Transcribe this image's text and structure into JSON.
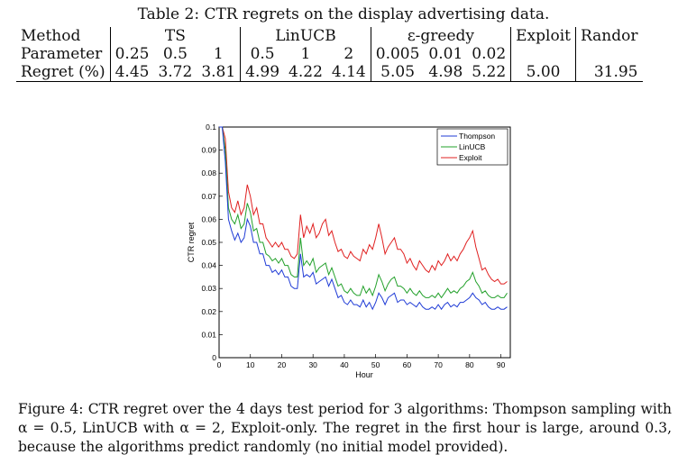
{
  "table": {
    "caption": "Table 2: CTR regrets on the display advertising data.",
    "row_method_label": "Method",
    "row_parameter_label": "Parameter",
    "row_regret_label": "Regret (%)",
    "groups": [
      {
        "name": "TS",
        "params": [
          "0.25",
          "0.5",
          "1"
        ],
        "regrets": [
          "4.45",
          "3.72",
          "3.81"
        ]
      },
      {
        "name": "LinUCB",
        "params": [
          "0.5",
          "1",
          "2"
        ],
        "regrets": [
          "4.99",
          "4.22",
          "4.14"
        ]
      },
      {
        "name": "ε-greedy",
        "params": [
          "0.005",
          "0.01",
          "0.02"
        ],
        "regrets": [
          "5.05",
          "4.98",
          "5.22"
        ]
      },
      {
        "name": "Exploit",
        "params": [
          ""
        ],
        "regrets": [
          "5.00"
        ]
      },
      {
        "name": "Randor",
        "params": [
          ""
        ],
        "regrets": [
          "31.95"
        ]
      }
    ]
  },
  "chart_data": {
    "type": "line",
    "xlabel": "Hour",
    "ylabel": "CTR regret",
    "xlim": [
      0,
      93
    ],
    "ylim": [
      0,
      0.1
    ],
    "xticks": [
      "0",
      "10",
      "20",
      "30",
      "40",
      "50",
      "60",
      "70",
      "80",
      "90"
    ],
    "yticks": [
      "0",
      "0.01",
      "0.02",
      "0.03",
      "0.04",
      "0.05",
      "0.06",
      "0.07",
      "0.08",
      "0.09",
      "0.1"
    ],
    "legend_position": "top-right",
    "x": [
      0,
      1,
      2,
      3,
      4,
      5,
      6,
      7,
      8,
      9,
      10,
      11,
      12,
      13,
      14,
      15,
      16,
      17,
      18,
      19,
      20,
      21,
      22,
      23,
      24,
      25,
      26,
      27,
      28,
      29,
      30,
      31,
      32,
      33,
      34,
      35,
      36,
      37,
      38,
      39,
      40,
      41,
      42,
      43,
      44,
      45,
      46,
      47,
      48,
      49,
      50,
      51,
      52,
      53,
      54,
      55,
      56,
      57,
      58,
      59,
      60,
      61,
      62,
      63,
      64,
      65,
      66,
      67,
      68,
      69,
      70,
      71,
      72,
      73,
      74,
      75,
      76,
      77,
      78,
      79,
      80,
      81,
      82,
      83,
      84,
      85,
      86,
      87,
      88,
      89,
      90,
      91,
      92
    ],
    "series": [
      {
        "name": "Thompson",
        "color": "#1f3bd6",
        "values": [
          0.1,
          0.1,
          0.085,
          0.06,
          0.055,
          0.051,
          0.054,
          0.05,
          0.052,
          0.06,
          0.057,
          0.05,
          0.05,
          0.045,
          0.045,
          0.04,
          0.04,
          0.037,
          0.038,
          0.036,
          0.038,
          0.035,
          0.035,
          0.031,
          0.03,
          0.03,
          0.045,
          0.035,
          0.036,
          0.035,
          0.037,
          0.032,
          0.033,
          0.034,
          0.035,
          0.031,
          0.034,
          0.03,
          0.026,
          0.027,
          0.024,
          0.023,
          0.025,
          0.023,
          0.023,
          0.022,
          0.025,
          0.022,
          0.024,
          0.021,
          0.024,
          0.028,
          0.026,
          0.023,
          0.026,
          0.027,
          0.028,
          0.024,
          0.025,
          0.025,
          0.023,
          0.024,
          0.023,
          0.022,
          0.024,
          0.022,
          0.021,
          0.021,
          0.022,
          0.021,
          0.023,
          0.021,
          0.023,
          0.024,
          0.022,
          0.023,
          0.022,
          0.024,
          0.024,
          0.025,
          0.026,
          0.028,
          0.026,
          0.025,
          0.023,
          0.024,
          0.022,
          0.021,
          0.021,
          0.022,
          0.021,
          0.021,
          0.022
        ]
      },
      {
        "name": "LinUCB",
        "color": "#22a02a",
        "values": [
          0.1,
          0.1,
          0.09,
          0.065,
          0.06,
          0.058,
          0.062,
          0.056,
          0.058,
          0.067,
          0.063,
          0.055,
          0.056,
          0.05,
          0.05,
          0.045,
          0.044,
          0.042,
          0.043,
          0.041,
          0.043,
          0.04,
          0.04,
          0.036,
          0.035,
          0.035,
          0.052,
          0.04,
          0.042,
          0.04,
          0.043,
          0.037,
          0.039,
          0.04,
          0.041,
          0.036,
          0.039,
          0.035,
          0.031,
          0.032,
          0.029,
          0.028,
          0.03,
          0.028,
          0.027,
          0.027,
          0.031,
          0.028,
          0.03,
          0.027,
          0.031,
          0.036,
          0.033,
          0.029,
          0.032,
          0.034,
          0.035,
          0.031,
          0.031,
          0.03,
          0.028,
          0.03,
          0.028,
          0.027,
          0.029,
          0.027,
          0.026,
          0.026,
          0.027,
          0.026,
          0.028,
          0.026,
          0.028,
          0.03,
          0.028,
          0.029,
          0.028,
          0.03,
          0.031,
          0.033,
          0.034,
          0.037,
          0.033,
          0.031,
          0.028,
          0.029,
          0.027,
          0.026,
          0.026,
          0.027,
          0.026,
          0.026,
          0.028
        ]
      },
      {
        "name": "Exploit",
        "color": "#e02020",
        "values": [
          0.1,
          0.1,
          0.095,
          0.072,
          0.065,
          0.063,
          0.068,
          0.062,
          0.065,
          0.075,
          0.07,
          0.062,
          0.065,
          0.058,
          0.058,
          0.052,
          0.05,
          0.048,
          0.05,
          0.048,
          0.05,
          0.047,
          0.047,
          0.044,
          0.043,
          0.045,
          0.062,
          0.052,
          0.057,
          0.054,
          0.058,
          0.052,
          0.054,
          0.058,
          0.06,
          0.053,
          0.055,
          0.05,
          0.046,
          0.047,
          0.044,
          0.043,
          0.046,
          0.044,
          0.043,
          0.042,
          0.047,
          0.045,
          0.049,
          0.047,
          0.052,
          0.058,
          0.052,
          0.045,
          0.048,
          0.05,
          0.052,
          0.047,
          0.047,
          0.045,
          0.041,
          0.043,
          0.04,
          0.038,
          0.042,
          0.04,
          0.038,
          0.037,
          0.04,
          0.038,
          0.042,
          0.04,
          0.042,
          0.045,
          0.042,
          0.044,
          0.042,
          0.045,
          0.047,
          0.05,
          0.052,
          0.055,
          0.048,
          0.043,
          0.038,
          0.039,
          0.036,
          0.034,
          0.033,
          0.034,
          0.032,
          0.032,
          0.033
        ]
      }
    ]
  },
  "figure_caption": "Figure 4: CTR regret over the 4 days test period for 3 algorithms: Thompson sampling with α = 0.5, LinUCB with α = 2, Exploit-only. The regret in the first hour is large, around 0.3, because the algorithms predict randomly (no initial model provided)."
}
